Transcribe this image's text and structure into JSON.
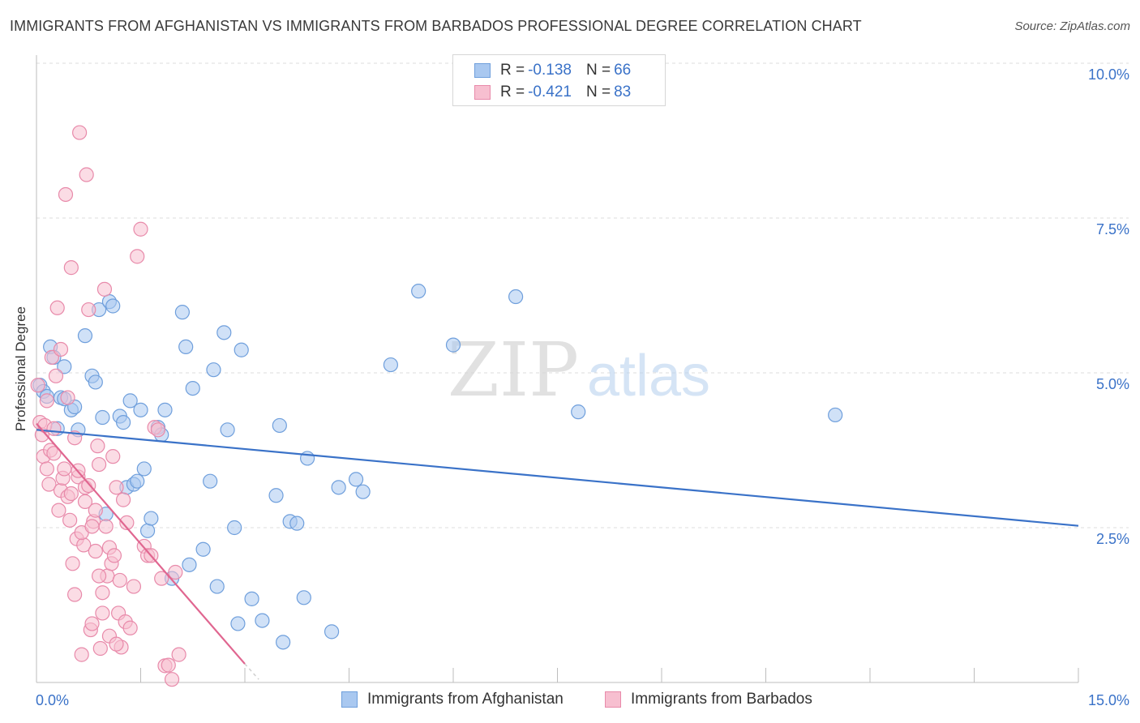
{
  "title": "IMMIGRANTS FROM AFGHANISTAN VS IMMIGRANTS FROM BARBADOS PROFESSIONAL DEGREE CORRELATION CHART",
  "source": "Source: ZipAtlas.com",
  "watermark": {
    "zip": "ZIP",
    "atlas": "atlas"
  },
  "legend": {
    "rows": [
      {
        "r_label": "R = ",
        "r_value": "-0.138",
        "n_label": "N = ",
        "n_value": "66",
        "color": "#a9c8f0",
        "border": "#6f9fdc"
      },
      {
        "r_label": "R = ",
        "r_value": "-0.421",
        "n_label": "N = ",
        "n_value": "83",
        "color": "#f7bfd0",
        "border": "#e88aaa"
      }
    ]
  },
  "chart_data": {
    "type": "scatter",
    "title": "IMMIGRANTS FROM AFGHANISTAN VS IMMIGRANTS FROM BARBADOS PROFESSIONAL DEGREE CORRELATION CHART",
    "xlabel": "",
    "ylabel": "Professional Degree",
    "xlim": [
      0,
      15
    ],
    "ylim": [
      0,
      10
    ],
    "x_ticks": [
      "0.0%",
      "15.0%"
    ],
    "y_ticks": [
      {
        "value": 10,
        "label": "10.0%"
      },
      {
        "value": 7.5,
        "label": "7.5%"
      },
      {
        "value": 5,
        "label": "5.0%"
      },
      {
        "value": 2.5,
        "label": "2.5%"
      }
    ],
    "grid": true,
    "legend_position": "top-center",
    "series": [
      {
        "name": "Immigrants from Afghanistan",
        "color": "#a9c8f0",
        "stroke": "#6f9fdc",
        "trend": {
          "x": [
            0.0,
            15.0
          ],
          "y": [
            4.08,
            2.53
          ],
          "color": "#3a72c8"
        },
        "points": [
          [
            0.05,
            4.8
          ],
          [
            0.1,
            4.7
          ],
          [
            0.15,
            4.62
          ],
          [
            0.2,
            5.42
          ],
          [
            0.25,
            5.25
          ],
          [
            0.3,
            4.1
          ],
          [
            0.35,
            4.6
          ],
          [
            0.4,
            5.1
          ],
          [
            0.5,
            4.4
          ],
          [
            0.55,
            4.45
          ],
          [
            0.6,
            4.08
          ],
          [
            0.7,
            5.6
          ],
          [
            0.8,
            4.95
          ],
          [
            0.85,
            4.85
          ],
          [
            0.9,
            6.02
          ],
          [
            0.95,
            4.28
          ],
          [
            1.0,
            2.72
          ],
          [
            1.05,
            6.15
          ],
          [
            1.1,
            6.08
          ],
          [
            1.2,
            4.3
          ],
          [
            1.25,
            4.2
          ],
          [
            1.3,
            3.15
          ],
          [
            1.35,
            4.55
          ],
          [
            1.4,
            3.2
          ],
          [
            1.45,
            3.25
          ],
          [
            1.5,
            4.4
          ],
          [
            1.55,
            3.45
          ],
          [
            1.6,
            2.45
          ],
          [
            1.65,
            2.65
          ],
          [
            1.75,
            4.12
          ],
          [
            1.8,
            4.0
          ],
          [
            1.85,
            4.4
          ],
          [
            1.95,
            1.68
          ],
          [
            2.1,
            5.98
          ],
          [
            2.15,
            5.42
          ],
          [
            2.2,
            1.9
          ],
          [
            2.25,
            4.75
          ],
          [
            2.4,
            2.15
          ],
          [
            2.5,
            3.25
          ],
          [
            2.55,
            5.05
          ],
          [
            2.6,
            1.55
          ],
          [
            2.7,
            5.65
          ],
          [
            2.75,
            4.08
          ],
          [
            2.85,
            2.5
          ],
          [
            2.9,
            0.95
          ],
          [
            2.95,
            5.37
          ],
          [
            3.1,
            1.35
          ],
          [
            3.25,
            1.0
          ],
          [
            3.45,
            3.02
          ],
          [
            3.5,
            4.15
          ],
          [
            3.55,
            0.65
          ],
          [
            3.65,
            2.6
          ],
          [
            3.75,
            2.57
          ],
          [
            3.85,
            1.37
          ],
          [
            3.9,
            3.62
          ],
          [
            4.25,
            0.82
          ],
          [
            4.35,
            3.15
          ],
          [
            4.6,
            3.28
          ],
          [
            4.7,
            3.08
          ],
          [
            5.1,
            5.13
          ],
          [
            5.5,
            6.32
          ],
          [
            6.0,
            5.45
          ],
          [
            6.9,
            6.23
          ],
          [
            7.8,
            4.37
          ],
          [
            11.5,
            4.32
          ],
          [
            0.4,
            4.58
          ]
        ]
      },
      {
        "name": "Immigrants from Barbados",
        "color": "#f7bfd0",
        "stroke": "#e88aaa",
        "trend": {
          "x": [
            0.0,
            3.0
          ],
          "y": [
            4.18,
            0.3
          ],
          "dash_to": [
            3.2,
            0.05
          ],
          "color": "#e06690"
        },
        "points": [
          [
            0.02,
            4.8
          ],
          [
            0.05,
            4.2
          ],
          [
            0.08,
            4.0
          ],
          [
            0.1,
            3.65
          ],
          [
            0.12,
            4.15
          ],
          [
            0.15,
            3.45
          ],
          [
            0.18,
            3.2
          ],
          [
            0.2,
            3.75
          ],
          [
            0.22,
            5.25
          ],
          [
            0.25,
            4.1
          ],
          [
            0.28,
            4.95
          ],
          [
            0.3,
            6.05
          ],
          [
            0.32,
            2.78
          ],
          [
            0.35,
            3.1
          ],
          [
            0.38,
            3.3
          ],
          [
            0.4,
            3.45
          ],
          [
            0.42,
            7.88
          ],
          [
            0.45,
            3.0
          ],
          [
            0.48,
            2.62
          ],
          [
            0.5,
            3.05
          ],
          [
            0.52,
            1.92
          ],
          [
            0.55,
            1.42
          ],
          [
            0.58,
            2.32
          ],
          [
            0.6,
            3.32
          ],
          [
            0.62,
            8.88
          ],
          [
            0.65,
            0.45
          ],
          [
            0.68,
            2.22
          ],
          [
            0.7,
            3.15
          ],
          [
            0.72,
            8.2
          ],
          [
            0.75,
            6.02
          ],
          [
            0.78,
            0.85
          ],
          [
            0.8,
            0.95
          ],
          [
            0.82,
            2.6
          ],
          [
            0.85,
            2.78
          ],
          [
            0.88,
            3.82
          ],
          [
            0.9,
            3.52
          ],
          [
            0.92,
            0.55
          ],
          [
            0.95,
            1.45
          ],
          [
            0.98,
            6.35
          ],
          [
            1.0,
            2.52
          ],
          [
            1.02,
            1.72
          ],
          [
            1.05,
            2.18
          ],
          [
            1.08,
            1.92
          ],
          [
            1.1,
            3.65
          ],
          [
            1.12,
            2.05
          ],
          [
            1.15,
            3.15
          ],
          [
            1.18,
            1.12
          ],
          [
            1.2,
            1.65
          ],
          [
            1.22,
            0.57
          ],
          [
            1.25,
            2.95
          ],
          [
            1.28,
            0.98
          ],
          [
            1.3,
            2.58
          ],
          [
            1.35,
            0.88
          ],
          [
            1.4,
            1.55
          ],
          [
            1.45,
            6.88
          ],
          [
            1.5,
            7.32
          ],
          [
            1.55,
            2.2
          ],
          [
            1.6,
            2.05
          ],
          [
            1.65,
            2.05
          ],
          [
            1.7,
            4.12
          ],
          [
            1.75,
            4.08
          ],
          [
            1.8,
            1.68
          ],
          [
            1.85,
            0.27
          ],
          [
            1.9,
            0.28
          ],
          [
            1.95,
            0.05
          ],
          [
            2.0,
            1.78
          ],
          [
            2.05,
            0.45
          ],
          [
            0.15,
            4.55
          ],
          [
            0.25,
            3.7
          ],
          [
            0.35,
            5.38
          ],
          [
            0.45,
            4.6
          ],
          [
            0.5,
            6.7
          ],
          [
            0.55,
            3.95
          ],
          [
            0.6,
            3.42
          ],
          [
            0.65,
            2.42
          ],
          [
            0.7,
            2.92
          ],
          [
            0.75,
            3.18
          ],
          [
            0.8,
            2.52
          ],
          [
            0.85,
            2.12
          ],
          [
            0.9,
            1.72
          ],
          [
            0.95,
            1.12
          ],
          [
            1.05,
            0.75
          ],
          [
            1.15,
            0.62
          ]
        ]
      }
    ]
  },
  "bottom_legend": [
    {
      "label": "Immigrants from Afghanistan",
      "color": "#a9c8f0",
      "border": "#6f9fdc"
    },
    {
      "label": "Immigrants from Barbados",
      "color": "#f7bfd0",
      "border": "#e88aaa"
    }
  ]
}
